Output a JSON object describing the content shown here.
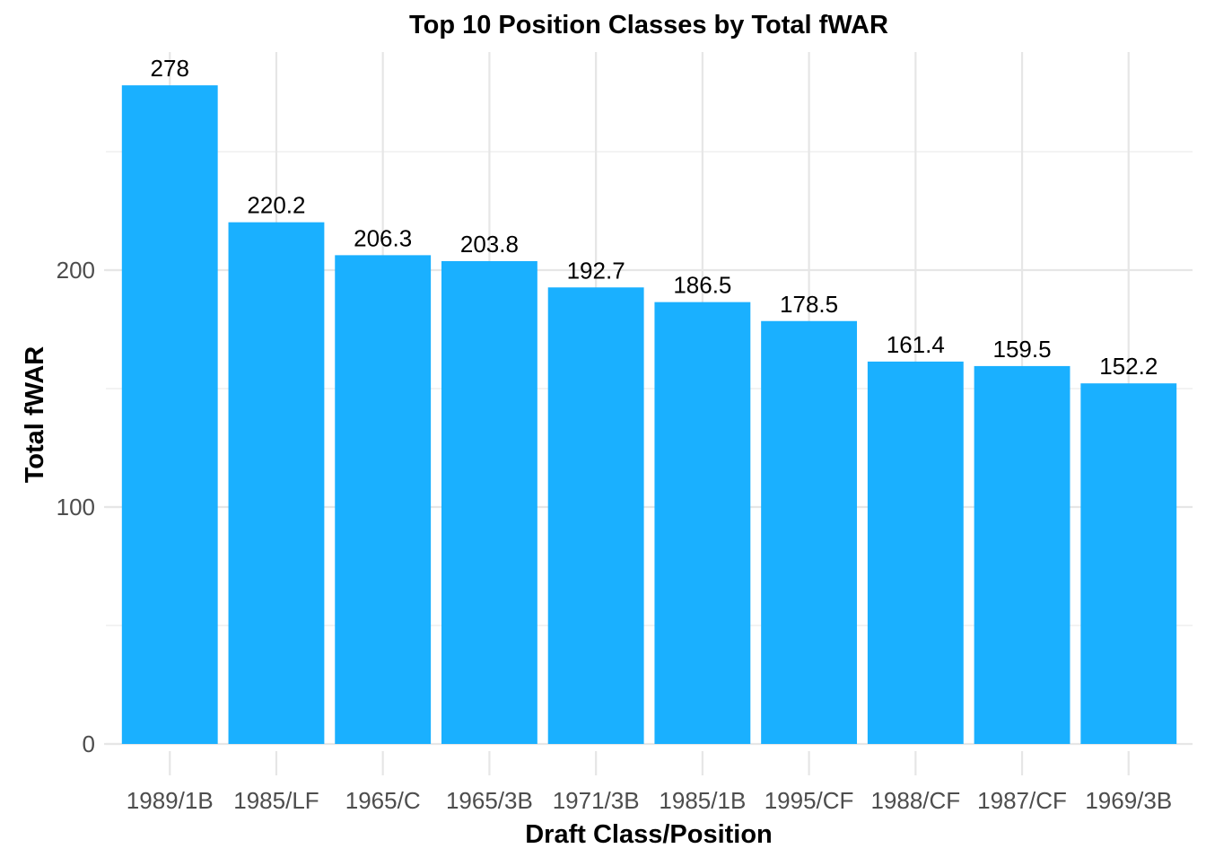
{
  "chart_data": {
    "type": "bar",
    "title": "Top 10 Position Classes by Total fWAR",
    "xlabel": "Draft Class/Position",
    "ylabel": "Total fWAR",
    "categories": [
      "1989/1B",
      "1985/LF",
      "1965/C",
      "1965/3B",
      "1971/3B",
      "1985/1B",
      "1995/CF",
      "1988/CF",
      "1987/CF",
      "1969/3B"
    ],
    "values": [
      278,
      220.2,
      206.3,
      203.8,
      192.7,
      186.5,
      178.5,
      161.4,
      159.5,
      152.2
    ],
    "data_labels": [
      "278",
      "220.2",
      "206.3",
      "203.8",
      "192.7",
      "186.5",
      "178.5",
      "161.4",
      "159.5",
      "152.2"
    ],
    "ylim": [
      0,
      292
    ],
    "y_ticks": [
      0,
      100,
      200
    ],
    "y_tick_labels": [
      "0",
      "100",
      "200"
    ],
    "y_minor_ticks": [
      50,
      150,
      250
    ],
    "grid": true,
    "legend": "none",
    "bar_color": "#1AB0FF"
  }
}
